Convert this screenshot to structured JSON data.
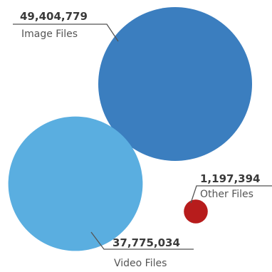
{
  "chart_data": {
    "type": "bubble",
    "bubbles": [
      {
        "label": "Image Files",
        "value": 49404779,
        "value_text": "49,404,779",
        "color": "#3b7ebf"
      },
      {
        "label": "Video Files",
        "value": 37775034,
        "value_text": "37,775,034",
        "color": "#5aaee0"
      },
      {
        "label": "Other Files",
        "value": 1197394,
        "value_text": "1,197,394",
        "color": "#b71c1c"
      }
    ]
  }
}
